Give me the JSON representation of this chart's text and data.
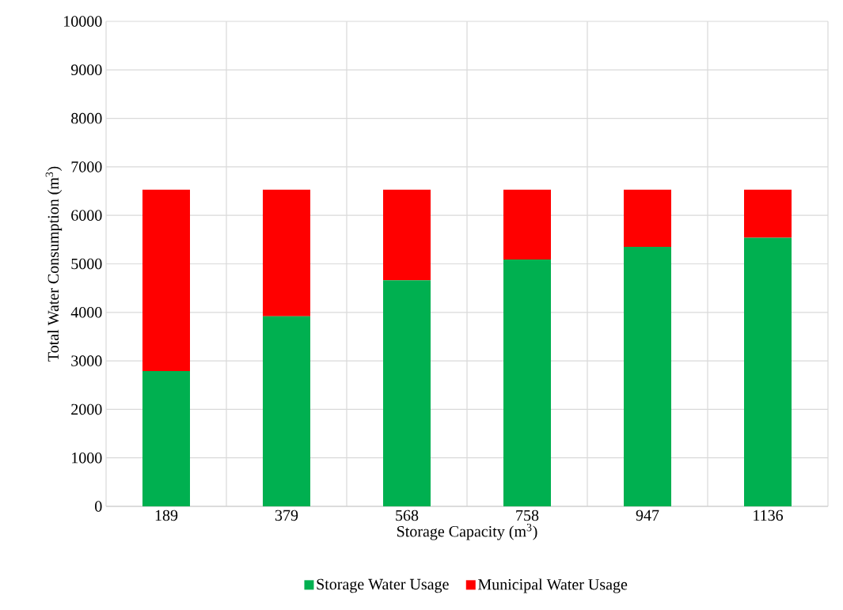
{
  "chart_data": {
    "type": "bar",
    "stacked": true,
    "xlabel": "Storage Capacity (m$^{3}$)",
    "ylabel": "Total Water Consumption  (m$^{3}$)",
    "categories": [
      "189",
      "379",
      "568",
      "758",
      "947",
      "1136"
    ],
    "series": [
      {
        "name": "Storage Water Usage",
        "color": "#00b050",
        "values": [
          2790,
          3920,
          4660,
          5090,
          5350,
          5540
        ]
      },
      {
        "name": "Municipal Water Usage",
        "color": "#ff0000",
        "values": [
          3740,
          2610,
          1870,
          1440,
          1180,
          990
        ]
      }
    ],
    "ylim": [
      0,
      10000
    ],
    "yticks": [
      0,
      1000,
      2000,
      3000,
      4000,
      5000,
      6000,
      7000,
      8000,
      9000,
      10000
    ],
    "grid": true,
    "legend": "bottom"
  }
}
